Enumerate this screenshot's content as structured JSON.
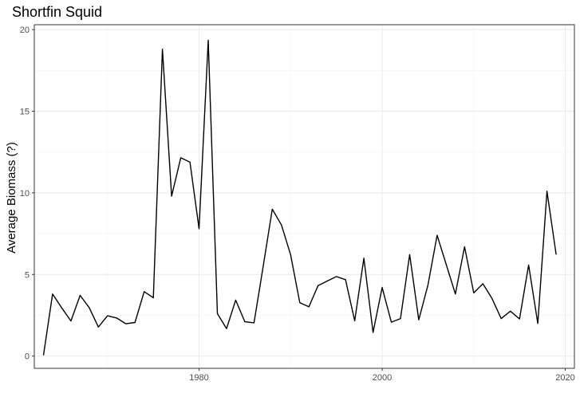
{
  "chart_data": {
    "type": "line",
    "title": "Shortfin Squid",
    "xlabel": "",
    "ylabel": "Average Biomass (?)",
    "xlim": [
      1962,
      2021
    ],
    "ylim": [
      -0.75,
      20.3
    ],
    "x_ticks": [
      1980,
      2000,
      2020
    ],
    "y_ticks": [
      0,
      5,
      10,
      15,
      20
    ],
    "grid": true,
    "legend": "none",
    "colors": {
      "line": "#000000",
      "grid_major": "#ebebeb",
      "grid_minor": "#f5f5f5",
      "panel_border": "#333333",
      "tick_text": "#4d4d4d"
    },
    "series": [
      {
        "x": [
          1963,
          1964,
          1965,
          1966,
          1967,
          1968,
          1969,
          1970,
          1971,
          1972,
          1973,
          1974,
          1975,
          1976,
          1977,
          1978,
          1979,
          1980,
          1981,
          1982,
          1983,
          1984,
          1985,
          1986,
          1987,
          1988,
          1989,
          1990,
          1991,
          1992,
          1993,
          1994,
          1995,
          1996,
          1997,
          1998,
          1999,
          2000,
          2001,
          2002,
          2003,
          2004,
          2005,
          2006,
          2007,
          2008,
          2009,
          2010,
          2011,
          2012,
          2013,
          2014,
          2015,
          2016,
          2017,
          2018,
          2019
        ],
        "values": [
          0.05,
          3.8,
          2.95,
          2.15,
          3.72,
          2.97,
          1.78,
          2.47,
          2.33,
          1.98,
          2.06,
          3.95,
          3.57,
          18.8,
          9.8,
          12.15,
          11.88,
          7.8,
          19.35,
          2.6,
          1.68,
          3.43,
          2.1,
          2.04,
          5.5,
          9.0,
          8.03,
          6.2,
          3.27,
          3.02,
          4.32,
          4.6,
          4.87,
          4.68,
          2.16,
          6.0,
          1.45,
          4.2,
          2.08,
          2.3,
          6.22,
          2.22,
          4.35,
          7.4,
          5.6,
          3.8,
          6.7,
          3.87,
          4.43,
          3.53,
          2.3,
          2.75,
          2.28,
          5.58,
          2.0,
          10.1,
          6.22
        ]
      }
    ]
  }
}
